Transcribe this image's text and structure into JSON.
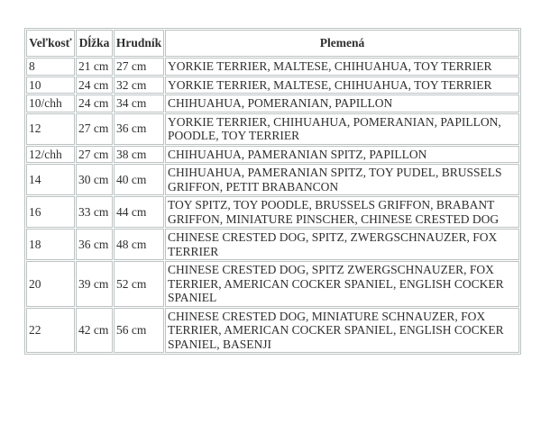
{
  "page": {
    "background": "#ffffff"
  },
  "colors": {
    "table_border": "#bcc2c2",
    "text": "#2e2e2e"
  },
  "table": {
    "name": "dog-clothing-size-chart",
    "headers": [
      {
        "key": "size",
        "label": "Veľkosť"
      },
      {
        "key": "length",
        "label": "Dĺžka"
      },
      {
        "key": "chest",
        "label": "Hrudník"
      },
      {
        "key": "breeds",
        "label": "Plemená"
      }
    ],
    "rows": [
      {
        "size": "8",
        "length": "21 cm",
        "chest": "27 cm",
        "breeds": "YORKIE TERRIER, MALTESE, CHIHUAHUA, TOY TERRIER"
      },
      {
        "size": "10",
        "length": "24 cm",
        "chest": "32 cm",
        "breeds": "YORKIE TERRIER, MALTESE, CHIHUAHUA, TOY TERRIER"
      },
      {
        "size": "10/chh",
        "length": "24 cm",
        "chest": "34 cm",
        "breeds": "CHIHUAHUA, POMERANIAN, PAPILLON"
      },
      {
        "size": "12",
        "length": "27 cm",
        "chest": "36 cm",
        "breeds": "YORKIE TERRIER, CHIHUAHUA, POMERANIAN, PAPILLON, POODLE, TOY TERRIER"
      },
      {
        "size": "12/chh",
        "length": "27 cm",
        "chest": "38 cm",
        "breeds": "CHIHUAHUA, PAMERANIAN SPITZ, PAPILLON"
      },
      {
        "size": "14",
        "length": "30 cm",
        "chest": "40 cm",
        "breeds": "CHIHUAHUA, PAMERANIAN SPITZ, TOY PUDEL, BRUSSELS GRIFFON, PETIT BRABANCON"
      },
      {
        "size": "16",
        "length": "33 cm",
        "chest": "44 cm",
        "breeds": "TOY SPITZ, TOY POODLE, BRUSSELS GRIFFON, BRABANT GRIFFON, MINIATURE PINSCHER, CHINESE CRESTED DOG"
      },
      {
        "size": "18",
        "length": "36 cm",
        "chest": "48 cm",
        "breeds": "CHINESE CRESTED DOG, SPITZ, ZWERGSCHNAUZER, FOX TERRIER"
      },
      {
        "size": "20",
        "length": "39 cm",
        "chest": "52 cm",
        "breeds": "CHINESE CRESTED DOG, SPITZ ZWERGSCHNAUZER, FOX TERRIER, AMERICAN COCKER SPANIEL, ENGLISH COCKER SPANIEL"
      },
      {
        "size": "22",
        "length": "42 cm",
        "chest": "56 cm",
        "breeds": "CHINESE CRESTED DOG, MINIATURE SCHNAUZER, FOX TERRIER, AMERICAN COCKER SPANIEL, ENGLISH COCKER SPANIEL, BASENJI"
      }
    ]
  }
}
